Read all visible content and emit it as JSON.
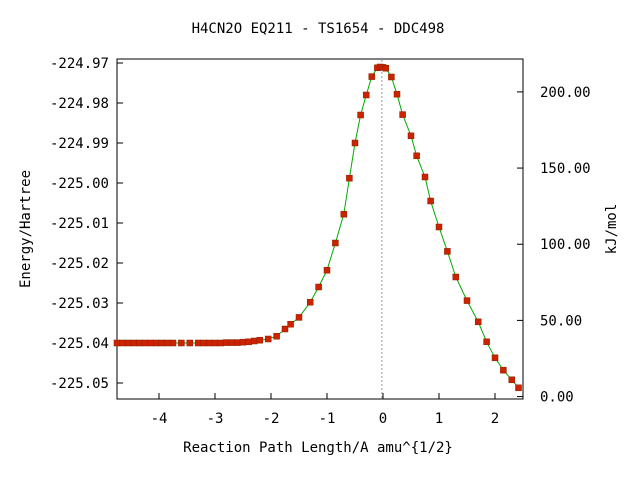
{
  "chart_data": {
    "type": "line",
    "title": "H4CN2O   EQ211 - TS1654 - DDC498",
    "xlabel": "Reaction Path Length/A amu^{1/2}",
    "ylabel": "Energy/Hartree",
    "y2label": "kJ/mol",
    "xlim": [
      -4.75,
      2.5
    ],
    "ylim": [
      -225.054,
      -224.969
    ],
    "y2lim": [
      -1.6,
      221.6
    ],
    "x_ticks": [
      -4,
      -3,
      -2,
      -1,
      0,
      1,
      2
    ],
    "x_tick_labels": [
      "-4",
      "-3",
      "-2",
      "-1",
      "0",
      "1",
      "2"
    ],
    "y_ticks": [
      -224.97,
      -224.98,
      -224.99,
      -225.0,
      -225.01,
      -225.02,
      -225.03,
      -225.04,
      -225.05
    ],
    "y_tick_labels": [
      "-224.97",
      "-224.98",
      "-224.99",
      "-225.00",
      "-225.01",
      "-225.02",
      "-225.03",
      "-225.04",
      "-225.05"
    ],
    "y2_ticks": [
      0,
      50,
      100,
      150,
      200
    ],
    "y2_tick_labels": [
      "0.00",
      "50.00",
      "100.00",
      "150.00",
      "200.00"
    ],
    "ts_x": -0.02,
    "line_color": "#00aa00",
    "marker_color": "#cc2200",
    "ts_line_color": "#999999",
    "grid": false,
    "series": [
      {
        "x": [
          -4.75,
          -4.65,
          -4.55,
          -4.45,
          -4.35,
          -4.25,
          -4.15,
          -4.05,
          -3.95,
          -3.85,
          -3.75,
          -3.6,
          -3.45,
          -3.3,
          -3.2,
          -3.1,
          -3.0,
          -2.9,
          -2.8,
          -2.7,
          -2.6,
          -2.5,
          -2.4,
          -2.3,
          -2.2,
          -2.05,
          -1.9,
          -1.75,
          -1.65,
          -1.5,
          -1.3,
          -1.15,
          -1.0,
          -0.85,
          -0.7,
          -0.6,
          -0.5,
          -0.4,
          -0.3,
          -0.2,
          -0.1,
          -0.05,
          0.0,
          0.05,
          0.15,
          0.25,
          0.35,
          0.5,
          0.6,
          0.75,
          0.85,
          1.0,
          1.15,
          1.3,
          1.5,
          1.7,
          1.85,
          2.0,
          2.15,
          2.3,
          2.42
        ],
        "values": [
          -225.04,
          -225.04,
          -225.04,
          -225.04,
          -225.04,
          -225.04,
          -225.04,
          -225.04,
          -225.04,
          -225.04,
          -225.04,
          -225.04,
          -225.04,
          -225.04,
          -225.04,
          -225.04,
          -225.04,
          -225.04,
          -225.0399,
          -225.0399,
          -225.0399,
          -225.0398,
          -225.0397,
          -225.0395,
          -225.0393,
          -225.039,
          -225.0383,
          -225.0365,
          -225.0353,
          -225.0336,
          -225.0298,
          -225.026,
          -225.0218,
          -225.015,
          -225.0078,
          -224.9988,
          -224.99,
          -224.983,
          -224.978,
          -224.9734,
          -224.9712,
          -224.971,
          -224.9711,
          -224.9713,
          -224.9735,
          -224.9778,
          -224.9829,
          -224.9882,
          -224.9932,
          -224.9985,
          -225.0045,
          -225.011,
          -225.0171,
          -225.0235,
          -225.0294,
          -225.0347,
          -225.0397,
          -225.0437,
          -225.0468,
          -225.0492,
          -225.0512
        ]
      }
    ]
  }
}
